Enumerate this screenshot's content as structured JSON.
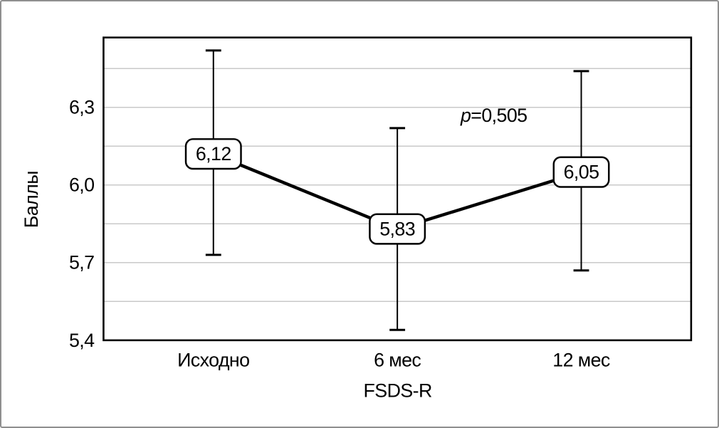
{
  "window": {
    "background": "#ffffff",
    "border_color": "#8f8f8f"
  },
  "chart_data": {
    "type": "line",
    "title": "",
    "categories": [
      "Исходно",
      "6 мес",
      "12 мес"
    ],
    "series": [
      {
        "name": "FSDS-R",
        "values": [
          6.12,
          5.83,
          6.05
        ],
        "point_labels": [
          "6,12",
          "5,83",
          "6,05"
        ],
        "error_low": [
          5.73,
          5.44,
          5.67
        ],
        "error_high": [
          6.52,
          6.22,
          6.44
        ]
      }
    ],
    "xlabel": "FSDS-R",
    "ylabel": "Баллы",
    "ylim": [
      5.4,
      6.57
    ],
    "yticks": [
      {
        "value": 5.4,
        "label": "5,4"
      },
      {
        "value": 5.7,
        "label": "5,7"
      },
      {
        "value": 6.0,
        "label": "6,0"
      },
      {
        "value": 6.3,
        "label": "6,3"
      }
    ],
    "gridlines": [
      5.55,
      5.7,
      5.85,
      6.0,
      6.15,
      6.3,
      6.45
    ],
    "grid_on": true,
    "legend_position": "none",
    "annotation": {
      "p_italic": "p",
      "text": "=0,505"
    },
    "colors": {
      "line": "#000000",
      "grid": "#c9c9c9",
      "axis": "#000000",
      "label_box_fill": "#ffffff",
      "label_box_border": "#000000"
    }
  }
}
